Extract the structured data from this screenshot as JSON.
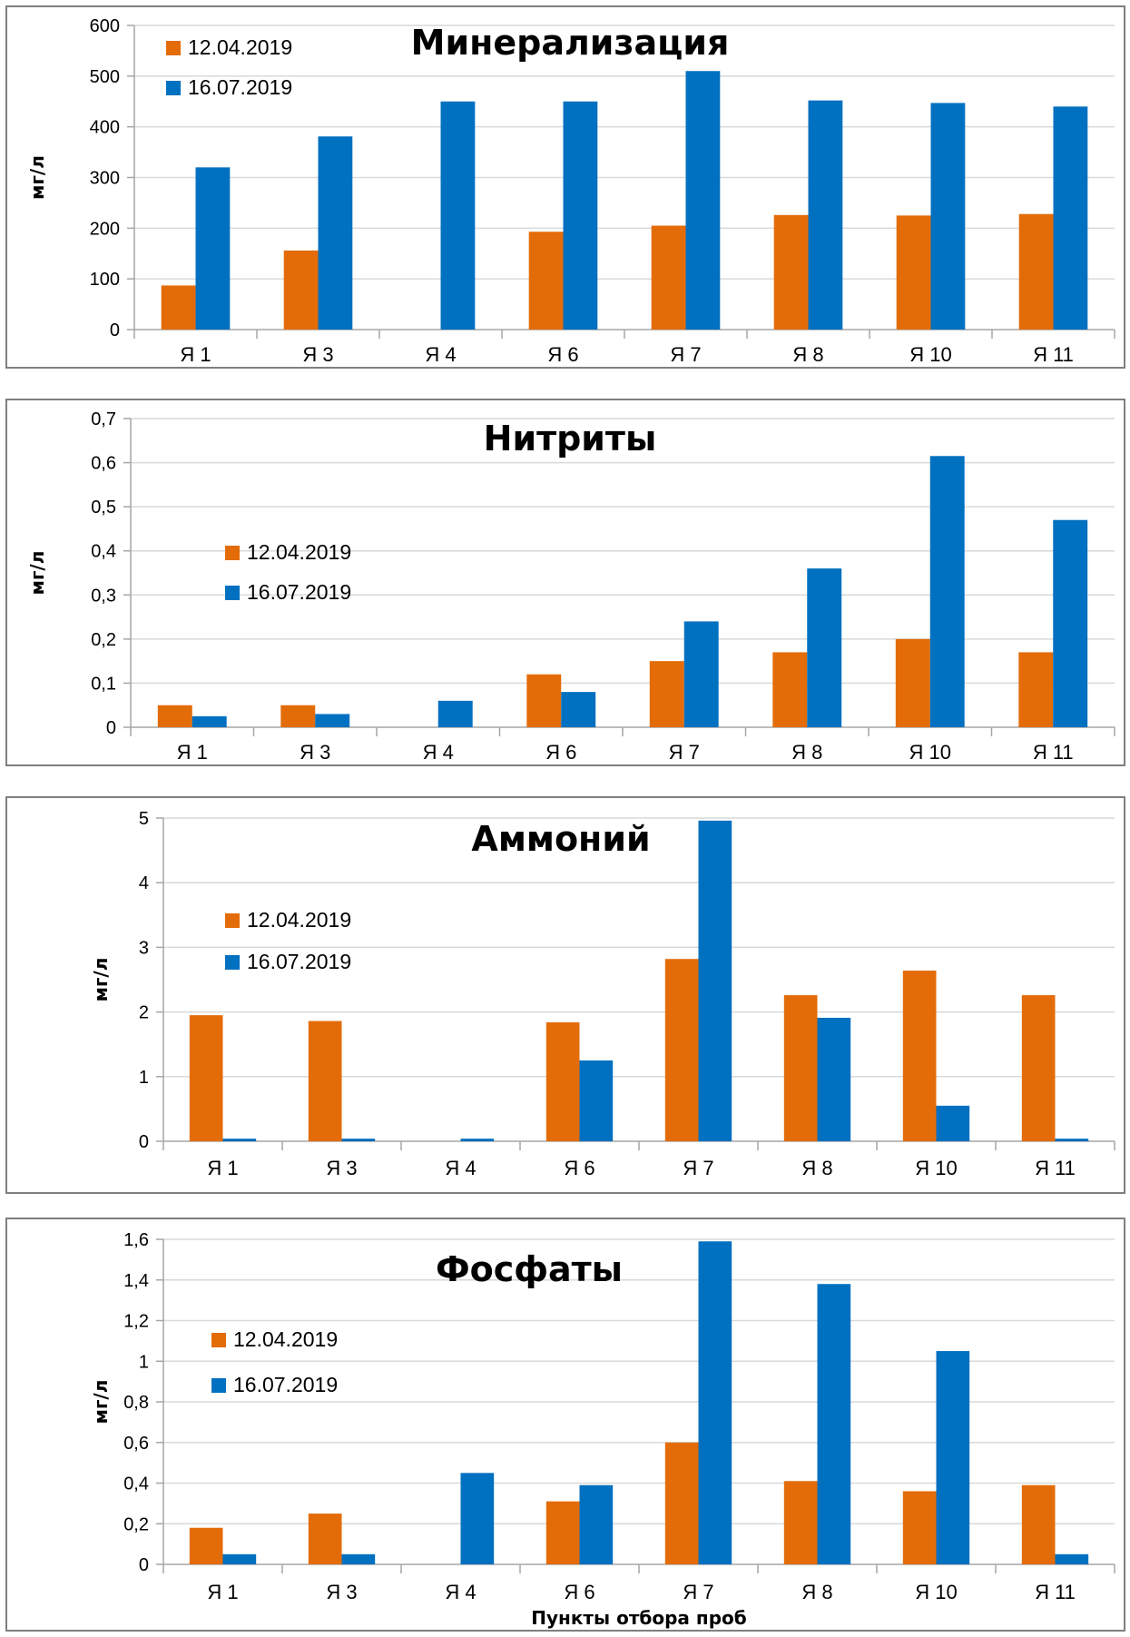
{
  "colors": {
    "series1": "#E36C09",
    "series2": "#0070C0"
  },
  "chart_data": [
    {
      "type": "bar",
      "title": "Минерализация",
      "ylabel": "мг/л",
      "xlabel": "",
      "categories": [
        "Я 1",
        "Я 3",
        "Я 4",
        "Я 6",
        "Я 7",
        "Я 8",
        "Я 10",
        "Я 11"
      ],
      "series": [
        {
          "name": "12.04.2019",
          "values": [
            87,
            156,
            null,
            193,
            205,
            226,
            225,
            228
          ]
        },
        {
          "name": "16.07.2019",
          "values": [
            320,
            381,
            450,
            450,
            510,
            452,
            447,
            440
          ]
        }
      ],
      "ylim": [
        0,
        600
      ],
      "yticks": [
        0,
        100,
        200,
        300,
        400,
        500,
        600
      ],
      "ytick_labels": [
        "0",
        "100",
        "200",
        "300",
        "400",
        "500",
        "600"
      ],
      "grid": true,
      "legend_position": "top-left"
    },
    {
      "type": "bar",
      "title": "Нитриты",
      "ylabel": "мг/л",
      "xlabel": "",
      "categories": [
        "Я 1",
        "Я 3",
        "Я 4",
        "Я 6",
        "Я 7",
        "Я 8",
        "Я 10",
        "Я 11"
      ],
      "series": [
        {
          "name": "12.04.2019",
          "values": [
            0.05,
            0.05,
            null,
            0.12,
            0.15,
            0.17,
            0.2,
            0.17
          ]
        },
        {
          "name": "16.07.2019",
          "values": [
            0.025,
            0.03,
            0.06,
            0.08,
            0.24,
            0.36,
            0.615,
            0.47
          ]
        }
      ],
      "ylim": [
        0,
        0.7
      ],
      "yticks": [
        0,
        0.1,
        0.2,
        0.3,
        0.4,
        0.5,
        0.6,
        0.7
      ],
      "ytick_labels": [
        "0",
        "0,1",
        "0,2",
        "0,3",
        "0,4",
        "0,5",
        "0,6",
        "0,7"
      ],
      "grid": true,
      "legend_position": "center-left"
    },
    {
      "type": "bar",
      "title": "Аммоний",
      "ylabel": "мг/л",
      "xlabel": "",
      "categories": [
        "Я 1",
        "Я 3",
        "Я 4",
        "Я 6",
        "Я 7",
        "Я 8",
        "Я 10",
        "Я 11"
      ],
      "series": [
        {
          "name": "12.04.2019",
          "values": [
            1.95,
            1.86,
            null,
            1.84,
            2.82,
            2.26,
            2.64,
            2.26
          ]
        },
        {
          "name": "16.07.2019",
          "values": [
            0.04,
            0.04,
            0.04,
            1.25,
            4.96,
            1.91,
            0.55,
            0.04
          ]
        }
      ],
      "ylim": [
        0,
        5
      ],
      "yticks": [
        0,
        1,
        2,
        3,
        4,
        5
      ],
      "ytick_labels": [
        "0",
        "1",
        "2",
        "3",
        "4",
        "5"
      ],
      "grid": true,
      "legend_position": "center-left"
    },
    {
      "type": "bar",
      "title": "Фосфаты",
      "ylabel": "мг/л",
      "xlabel": "Пункты отбора проб",
      "categories": [
        "Я 1",
        "Я 3",
        "Я 4",
        "Я 6",
        "Я 7",
        "Я 8",
        "Я 10",
        "Я 11"
      ],
      "series": [
        {
          "name": "12.04.2019",
          "values": [
            0.18,
            0.25,
            null,
            0.31,
            0.6,
            0.41,
            0.36,
            0.39
          ]
        },
        {
          "name": "16.07.2019",
          "values": [
            0.05,
            0.05,
            0.45,
            0.39,
            1.59,
            1.38,
            1.05,
            0.05
          ]
        }
      ],
      "ylim": [
        0,
        1.6
      ],
      "yticks": [
        0,
        0.2,
        0.4,
        0.6,
        0.8,
        1,
        1.2,
        1.4,
        1.6
      ],
      "ytick_labels": [
        "0",
        "0,2",
        "0,4",
        "0,6",
        "0,8",
        "1",
        "1,2",
        "1,4",
        "1,6"
      ],
      "grid": true,
      "legend_position": "center-left"
    }
  ]
}
